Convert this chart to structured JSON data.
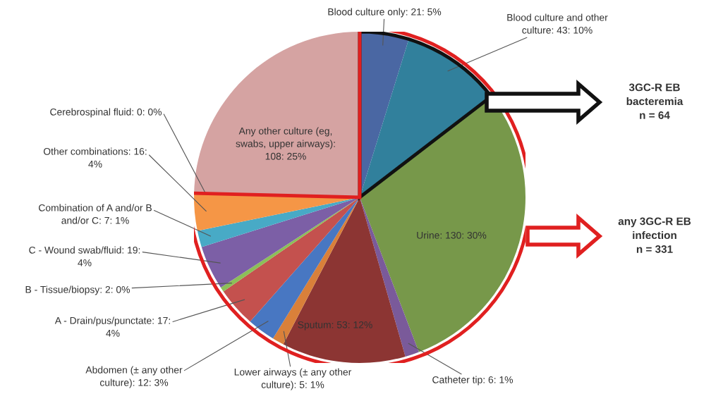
{
  "chart_data": {
    "type": "pie",
    "categories": [
      "Blood culture only: 21: 5%",
      "Blood culture and other\nculture: 43: 10%",
      "Urine: 130: 30%",
      "Catheter tip: 6: 1%",
      "Sputum: 53: 12%",
      "Lower airways (± any other\nculture): 5: 1%",
      "Abdomen (± any other\nculture): 12: 3%",
      "A - Drain/pus/punctate: 17:\n4%",
      "B - Tissue/biopsy: 2: 0%",
      "C - Wound swab/fluid: 19:\n4%",
      "Combination of A and/or B\nand/or C: 7: 1%",
      "Other combinations: 16:\n4%",
      "Cerebrospinal fluid: 0: 0%",
      "Any other culture (eg,\nswabs, upper airways):\n108: 25%"
    ],
    "values": [
      21,
      43,
      130,
      6,
      53,
      5,
      12,
      17,
      2,
      19,
      7,
      16,
      0,
      108
    ],
    "colors": [
      "#4a67a3",
      "#31809c",
      "#77984a",
      "#7a5a9a",
      "#8c3533",
      "#d9803a",
      "#4877c2",
      "#c4514e",
      "#8cbf58",
      "#7c5fa6",
      "#48aac6",
      "#f59646",
      "#999999",
      "#d5a3a2"
    ],
    "annotations": [
      "3GC-R EB\nbacteremia\nn = 64",
      "any 3GC-R EB\ninfection\nn = 331"
    ],
    "legend": false
  }
}
